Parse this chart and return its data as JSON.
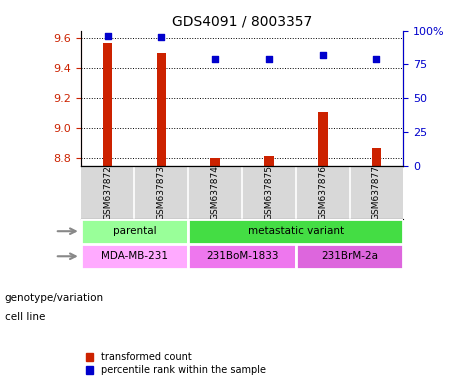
{
  "title": "GDS4091 / 8003357",
  "samples": [
    "GSM637872",
    "GSM637873",
    "GSM637874",
    "GSM637875",
    "GSM637876",
    "GSM637877"
  ],
  "transformed_counts": [
    9.57,
    9.5,
    8.803,
    8.814,
    9.11,
    8.87
  ],
  "percentile_ranks": [
    96,
    95,
    79,
    79,
    82,
    79
  ],
  "ylim_left": [
    8.75,
    9.65
  ],
  "ylim_right": [
    0,
    100
  ],
  "yticks_left": [
    8.8,
    9.0,
    9.2,
    9.4,
    9.6
  ],
  "yticks_right": [
    0,
    25,
    50,
    75,
    100
  ],
  "bar_color": "#cc2200",
  "dot_color": "#0000cc",
  "bar_bottom": 8.75,
  "genotype_groups": [
    {
      "label": "parental",
      "start": 0,
      "end": 2,
      "color": "#99ff99"
    },
    {
      "label": "metastatic variant",
      "start": 2,
      "end": 6,
      "color": "#44dd44"
    }
  ],
  "cell_lines": [
    {
      "label": "MDA-MB-231",
      "start": 0,
      "end": 2,
      "color": "#ffaaff"
    },
    {
      "label": "231BoM-1833",
      "start": 2,
      "end": 4,
      "color": "#ee77ee"
    },
    {
      "label": "231BrM-2a",
      "start": 4,
      "end": 6,
      "color": "#dd66dd"
    }
  ],
  "genotype_label": "genotype/variation",
  "cellline_label": "cell line",
  "legend_bar": "transformed count",
  "legend_dot": "percentile rank within the sample"
}
